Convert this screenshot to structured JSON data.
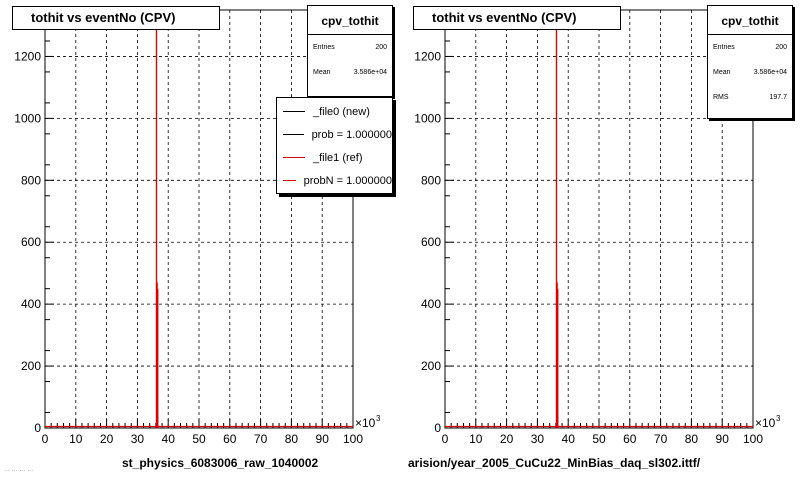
{
  "panels": [
    {
      "title": "tothit vs eventNo (CPV)",
      "stats": {
        "name": "cpv_tothit",
        "rows": [
          {
            "label": "Entries",
            "value": "200"
          },
          {
            "label": "Mean",
            "value": "3.586e+04"
          }
        ]
      },
      "legend": [
        {
          "label": "_file0 (new)",
          "color": "#000000"
        },
        {
          "label": "prob = 1.000000",
          "color": "#000000"
        },
        {
          "label": "_file1 (ref)",
          "color": "#dd0000"
        },
        {
          "label": "probN = 1.000000",
          "color": "#dd0000"
        }
      ],
      "footer": "st_physics_6083006_raw_1040002"
    },
    {
      "title": "tothit vs eventNo (CPV)",
      "stats": {
        "name": "cpv_tothit",
        "rows": [
          {
            "label": "Entries",
            "value": "200"
          },
          {
            "label": "Mean",
            "value": "3.586e+04"
          },
          {
            "label": "RMS",
            "value": "197.7"
          }
        ]
      },
      "legend": [],
      "footer": "arision/year_2005_CuCu22_MinBias_daq_sl302.ittf/"
    }
  ],
  "chart_data": [
    {
      "type": "bar",
      "title": "tothit vs eventNo (CPV)",
      "xlim": [
        0,
        100
      ],
      "ylim": [
        0,
        1350
      ],
      "x_ticks": [
        0,
        10,
        20,
        30,
        40,
        50,
        60,
        70,
        80,
        90,
        100
      ],
      "y_ticks": [
        0,
        200,
        400,
        600,
        800,
        1000,
        1200
      ],
      "x_multiplier": "×10",
      "x_multiplier_exp": "3",
      "grid": true,
      "series": [
        {
          "name": "_file0 (new)",
          "color": "#000000",
          "x": [
            36.3,
            36.5
          ],
          "y": [
            470,
            60
          ]
        },
        {
          "name": "_file1 (ref)",
          "color": "#dd0000",
          "x": [
            36.2,
            36.4,
            36.6
          ],
          "y": [
            1310,
            470,
            450
          ]
        }
      ]
    },
    {
      "type": "bar",
      "title": "tothit vs eventNo (CPV)",
      "xlim": [
        0,
        100
      ],
      "ylim": [
        0,
        1350
      ],
      "x_ticks": [
        0,
        10,
        20,
        30,
        40,
        50,
        60,
        70,
        80,
        90,
        100
      ],
      "y_ticks": [
        0,
        200,
        400,
        600,
        800,
        1000,
        1200
      ],
      "x_multiplier": "×10",
      "x_multiplier_exp": "3",
      "grid": true,
      "series": [
        {
          "color": "#000000",
          "x": [
            36.3,
            36.5
          ],
          "y": [
            470,
            60
          ]
        },
        {
          "color": "#dd0000",
          "x": [
            36.2,
            36.4,
            36.6
          ],
          "y": [
            1310,
            470,
            450
          ]
        }
      ]
    }
  ],
  "footer_faint": "... ... ... ..."
}
